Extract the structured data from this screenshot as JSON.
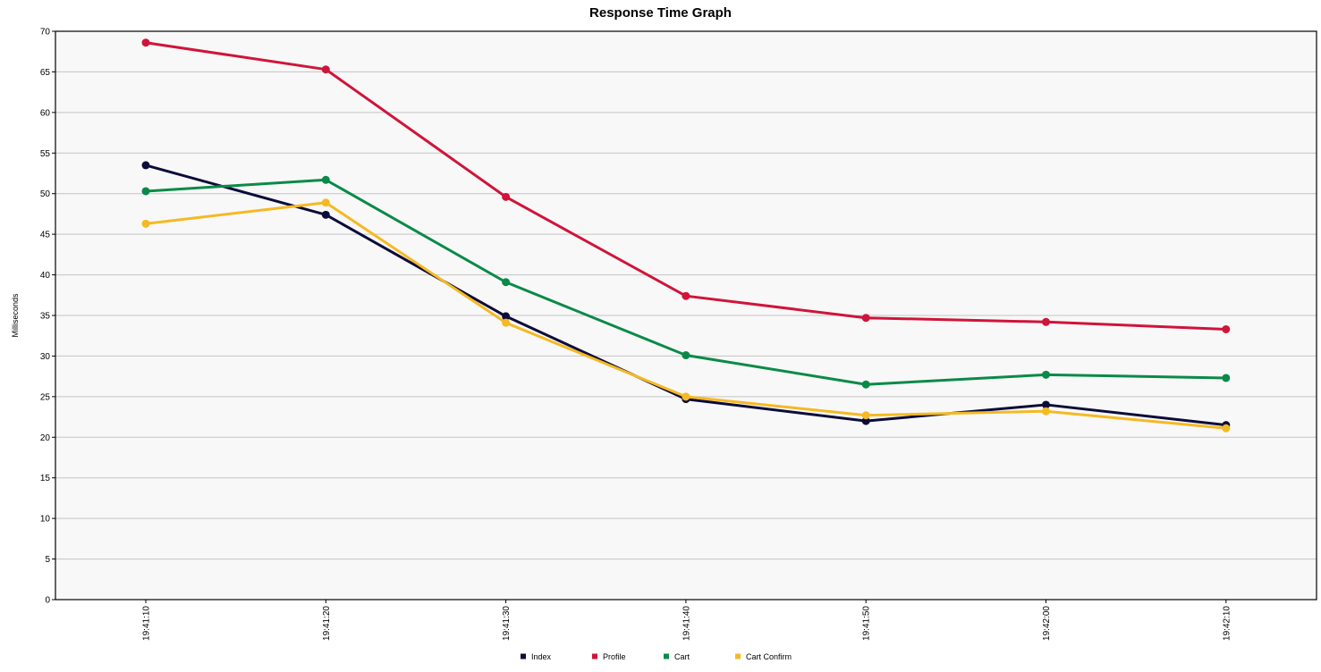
{
  "chart_data": {
    "type": "line",
    "title": "Response Time Graph",
    "xlabel": "",
    "ylabel": "Milliseconds",
    "ylim": [
      0,
      70
    ],
    "yticks": [
      0,
      5,
      10,
      15,
      20,
      25,
      30,
      35,
      40,
      45,
      50,
      55,
      60,
      65,
      70
    ],
    "categories": [
      "19:41:10",
      "19:41:20",
      "19:41:30",
      "19:41:40",
      "19:41:50",
      "19:42:00",
      "19:42:10"
    ],
    "grid": true,
    "legend_position": "bottom",
    "series": [
      {
        "name": "Index",
        "color": "#0c0c3a",
        "values": [
          53.5,
          47.4,
          34.9,
          24.7,
          22.0,
          24.0,
          21.5
        ]
      },
      {
        "name": "Profile",
        "color": "#d0143a",
        "values": [
          68.6,
          65.3,
          49.6,
          37.4,
          34.7,
          34.2,
          33.3
        ]
      },
      {
        "name": "Cart",
        "color": "#0a8a48",
        "values": [
          50.3,
          51.7,
          39.1,
          30.1,
          26.5,
          27.7,
          27.3
        ]
      },
      {
        "name": "Cart Confirm",
        "color": "#f5b923",
        "values": [
          46.3,
          48.9,
          34.1,
          25.0,
          22.7,
          23.2,
          21.1
        ]
      }
    ]
  },
  "colors": {
    "plot_background": "#f8f8f8",
    "gridline": "#c4c4c4",
    "axis": "#000000"
  }
}
